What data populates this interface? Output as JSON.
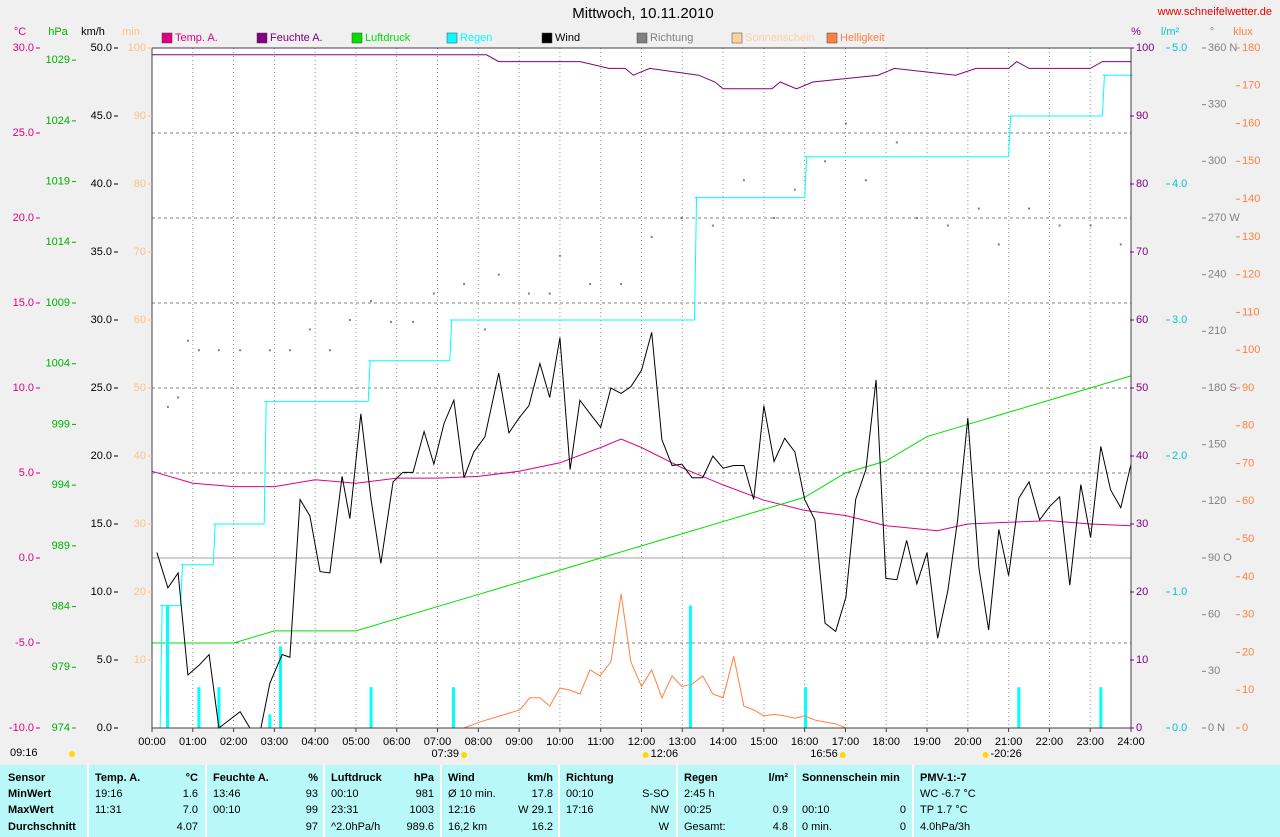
{
  "site": "www.schneifelwetter.de",
  "chart_data": {
    "type": "line",
    "title": "Mittwoch, 10.11.2010",
    "grid": true,
    "xlim": [
      0,
      24
    ],
    "xticks": [
      {
        "value": 0,
        "label": "00:00"
      },
      {
        "value": 1,
        "label": "01:00"
      },
      {
        "value": 2,
        "label": "02:00"
      },
      {
        "value": 3,
        "label": "03:00"
      },
      {
        "value": 4,
        "label": "04:00"
      },
      {
        "value": 5,
        "label": "05:00"
      },
      {
        "value": 6,
        "label": "06:00"
      },
      {
        "value": 7,
        "label": "07:00"
      },
      {
        "value": 8,
        "label": "08:00"
      },
      {
        "value": 9,
        "label": "09:00"
      },
      {
        "value": 10,
        "label": "10:00"
      },
      {
        "value": 11,
        "label": "11:00"
      },
      {
        "value": 12,
        "label": "12:00"
      },
      {
        "value": 13,
        "label": "13:00"
      },
      {
        "value": 14,
        "label": "14:00"
      },
      {
        "value": 15,
        "label": "15:00"
      },
      {
        "value": 16,
        "label": "16:00"
      },
      {
        "value": 17,
        "label": "17:00"
      },
      {
        "value": 18,
        "label": "18:00"
      },
      {
        "value": 19,
        "label": "19:00"
      },
      {
        "value": 20,
        "label": "20:00"
      },
      {
        "value": 21,
        "label": "21:00"
      },
      {
        "value": 22,
        "label": "22:00"
      },
      {
        "value": 23,
        "label": "23:00"
      },
      {
        "value": 24,
        "label": "24:00"
      }
    ],
    "axes": {
      "temp": {
        "label": "°C",
        "side": "left",
        "color": "#e0007f",
        "ylim": [
          -10,
          30
        ],
        "yticks": [
          {
            "value": -10,
            "label": "-10.0"
          },
          {
            "value": -5,
            "label": "-5.0"
          },
          {
            "value": 0,
            "label": "0.0"
          },
          {
            "value": 5,
            "label": "5.0"
          },
          {
            "value": 10,
            "label": "10.0"
          },
          {
            "value": 15,
            "label": "15.0"
          },
          {
            "value": 20,
            "label": "20.0"
          },
          {
            "value": 25,
            "label": "25.0"
          },
          {
            "value": 30,
            "label": "30.0"
          }
        ]
      },
      "hpa": {
        "label": "hPa",
        "side": "left",
        "color": "#00b000",
        "ylim": [
          974,
          1030
        ],
        "yticks": [
          974,
          979,
          984,
          989,
          994,
          999,
          1004,
          1009,
          1014,
          1019,
          1024,
          1029
        ]
      },
      "kmh": {
        "label": "km/h",
        "side": "left",
        "color": "#000000",
        "ylim": [
          0,
          50
        ],
        "yticks": [
          {
            "value": 0,
            "label": "0.0"
          },
          {
            "value": 5,
            "label": "5.0"
          },
          {
            "value": 10,
            "label": "10.0"
          },
          {
            "value": 15,
            "label": "15.0"
          },
          {
            "value": 20,
            "label": "20.0"
          },
          {
            "value": 25,
            "label": "25.0"
          },
          {
            "value": 30,
            "label": "30.0"
          },
          {
            "value": 35,
            "label": "35.0"
          },
          {
            "value": 40,
            "label": "40.0"
          },
          {
            "value": 45,
            "label": "45.0"
          },
          {
            "value": 50,
            "label": "50.0"
          }
        ]
      },
      "min": {
        "label": "min",
        "side": "left",
        "color": "#ffc080",
        "ylim": [
          0,
          100
        ],
        "yticks": [
          10,
          20,
          30,
          40,
          50,
          60,
          70,
          80,
          90,
          100
        ]
      },
      "pct": {
        "label": "%",
        "side": "right",
        "color": "#800080",
        "ylim": [
          0,
          100
        ],
        "yticks": [
          0,
          10,
          20,
          30,
          40,
          50,
          60,
          70,
          80,
          90,
          100
        ]
      },
      "rain": {
        "label": "l/m²",
        "side": "right",
        "color": "#00c8c8",
        "ylim": [
          0,
          5
        ],
        "yticks": [
          {
            "value": 0,
            "label": "0.0"
          },
          {
            "value": 1,
            "label": "1.0"
          },
          {
            "value": 2,
            "label": "2.0"
          },
          {
            "value": 3,
            "label": "3.0"
          },
          {
            "value": 4,
            "label": "4.0"
          },
          {
            "value": 5,
            "label": "5.0"
          }
        ]
      },
      "dir": {
        "label": "°",
        "side": "right",
        "color": "#808080",
        "ylim": [
          0,
          360
        ],
        "yticks": [
          {
            "value": 0,
            "label": "0 N"
          },
          30,
          60,
          {
            "value": 90,
            "label": "90 O"
          },
          120,
          150,
          {
            "value": 180,
            "label": "180 S"
          },
          210,
          240,
          {
            "value": 270,
            "label": "270 W"
          },
          300,
          330,
          {
            "value": 360,
            "label": "360 N"
          }
        ]
      },
      "klux": {
        "label": "klux",
        "side": "right",
        "color": "#ff8040",
        "ylim": [
          0,
          180
        ],
        "yticks": [
          0,
          10,
          20,
          30,
          40,
          50,
          60,
          70,
          80,
          90,
          100,
          110,
          120,
          130,
          140,
          150,
          160,
          170,
          180
        ]
      }
    },
    "series": [
      {
        "name": "Temp. A.",
        "color": "#e0007f",
        "axis": "temp",
        "style": "line",
        "x": [
          0,
          1,
          2,
          3,
          4,
          5,
          6,
          7,
          8,
          9,
          10,
          11,
          11.5,
          12,
          13,
          14,
          15,
          16,
          17,
          18,
          19.25,
          20,
          21,
          22,
          23,
          24
        ],
        "values": [
          5.1,
          4.4,
          4.2,
          4.2,
          4.6,
          4.4,
          4.7,
          4.7,
          4.8,
          5.1,
          5.6,
          6.5,
          7.0,
          6.5,
          5.3,
          4.3,
          3.4,
          2.8,
          2.5,
          1.9,
          1.6,
          2.0,
          2.1,
          2.2,
          2.0,
          1.9
        ]
      },
      {
        "name": "Feuchte A.",
        "color": "#800080",
        "axis": "pct",
        "style": "line",
        "x": [
          0,
          8.2,
          8.5,
          10.5,
          11.2,
          11.6,
          11.8,
          12.2,
          13.4,
          13.8,
          14.0,
          15.2,
          15.4,
          15.8,
          16.2,
          17.8,
          18.2,
          19.7,
          20.2,
          21.0,
          21.2,
          21.5,
          23.0,
          23.3,
          24
        ],
        "values": [
          99,
          99,
          98,
          98,
          97,
          97,
          96,
          97,
          96,
          95,
          94,
          94,
          95,
          94,
          95,
          96,
          97,
          96,
          97,
          97,
          98,
          97,
          97,
          98,
          98
        ]
      },
      {
        "name": "Luftdruck",
        "color": "#00e000",
        "axis": "hpa",
        "style": "line",
        "x": [
          0,
          1,
          2,
          3,
          4,
          5,
          6,
          7,
          8,
          9,
          10,
          11,
          12,
          13,
          14,
          15,
          16,
          17,
          18,
          19,
          20,
          21,
          22,
          23,
          24
        ],
        "values": [
          981,
          981,
          981,
          982,
          982,
          982,
          983,
          984,
          985,
          986,
          987,
          988,
          989,
          990,
          991,
          992,
          993,
          995,
          996,
          998,
          999,
          1000,
          1001,
          1002,
          1003
        ]
      },
      {
        "name": "Regen",
        "color": "#00ffff",
        "axis": "rain",
        "style": "step",
        "x": [
          0,
          0.2,
          0.7,
          1.5,
          2.75,
          5.3,
          7.3,
          13.3,
          16.0,
          21.0,
          23.3,
          24
        ],
        "values": [
          0,
          0.9,
          1.2,
          1.5,
          2.4,
          2.7,
          3.0,
          3.9,
          4.2,
          4.5,
          4.8,
          4.8
        ],
        "bars": {
          "x": [
            0.38,
            1.15,
            1.64,
            2.89,
            3.15,
            5.37,
            7.39,
            13.2,
            16.02,
            21.25,
            23.26
          ],
          "values": [
            0.9,
            0.3,
            0.3,
            0.1,
            0.6,
            0.3,
            0.3,
            0.9,
            0.3,
            0.3,
            0.3
          ]
        }
      },
      {
        "name": "Wind",
        "color": "#000000",
        "axis": "kmh",
        "style": "line",
        "x": [
          0.12,
          0.39,
          0.64,
          0.88,
          1.15,
          1.4,
          1.64,
          2.16,
          2.4,
          2.67,
          2.89,
          3.19,
          3.38,
          3.63,
          3.87,
          4.12,
          4.36,
          4.66,
          4.85,
          5.12,
          5.37,
          5.61,
          5.91,
          6.15,
          6.4,
          6.67,
          6.91,
          7.16,
          7.4,
          7.65,
          7.89,
          8.16,
          8.5,
          8.75,
          9.0,
          9.24,
          9.51,
          9.75,
          10.0,
          10.25,
          10.49,
          10.74,
          11.0,
          11.25,
          11.5,
          11.74,
          12.0,
          12.25,
          12.5,
          12.75,
          12.99,
          13.24,
          13.5,
          13.75,
          14.0,
          14.26,
          14.51,
          14.75,
          15.0,
          15.25,
          15.51,
          15.76,
          16.0,
          16.25,
          16.5,
          16.76,
          17.01,
          17.25,
          17.5,
          17.75,
          17.99,
          18.26,
          18.5,
          18.75,
          19.0,
          19.26,
          19.51,
          19.75,
          20.0,
          20.27,
          20.51,
          20.76,
          21.0,
          21.25,
          21.5,
          21.76,
          22.01,
          22.25,
          22.5,
          22.77,
          23.01,
          23.26,
          23.5,
          23.75,
          24.0
        ],
        "values": [
          12.9,
          10.3,
          11.4,
          3.9,
          4.6,
          5.4,
          0,
          1.2,
          0,
          0,
          3.3,
          5.4,
          5.2,
          16.8,
          15.6,
          11.5,
          11.4,
          18.5,
          15.4,
          23.1,
          16.8,
          12.1,
          18.1,
          18.8,
          18.8,
          21.8,
          19.4,
          22.4,
          24.1,
          18.4,
          20.3,
          21.4,
          26.1,
          21.7,
          22.8,
          23.7,
          26.8,
          24.3,
          28.7,
          19.0,
          24.1,
          23.1,
          22.1,
          25.0,
          24.6,
          25.1,
          26.3,
          29.1,
          21.2,
          19.3,
          19.4,
          18.4,
          18.4,
          20.0,
          19.1,
          19.3,
          19.3,
          16.8,
          23.7,
          19.6,
          21.3,
          20.3,
          16.8,
          15.3,
          7.7,
          7.1,
          9.6,
          16.8,
          19.0,
          25.6,
          11.0,
          10.9,
          13.8,
          10.6,
          12.9,
          6.6,
          10.1,
          15.3,
          22.8,
          11.8,
          7.2,
          14.6,
          11.2,
          16.9,
          18.1,
          15.3,
          16.3,
          17.0,
          10.5,
          17.9,
          14.0,
          20.7,
          17.5,
          16.2,
          19.4
        ]
      },
      {
        "name": "Richtung",
        "color": "#808080",
        "axis": "dir",
        "style": "dots",
        "x": [
          0.39,
          0.64,
          0.88,
          1.15,
          1.64,
          2.16,
          2.89,
          3.38,
          3.87,
          4.36,
          4.85,
          5.37,
          5.86,
          6.4,
          6.91,
          7.65,
          8.16,
          8.5,
          9.24,
          9.75,
          10.0,
          10.74,
          11.5,
          12.25,
          12.99,
          13.75,
          14.51,
          15.25,
          15.76,
          16.5,
          17.01,
          17.5,
          18.26,
          18.75,
          19.51,
          20.27,
          20.76,
          21.5,
          22.25,
          23.01,
          23.75
        ],
        "values": [
          170,
          175,
          205,
          200,
          200,
          200,
          200,
          200,
          211,
          200,
          216,
          226,
          215,
          215,
          230,
          235,
          211,
          240,
          230,
          230,
          250,
          235,
          235,
          260,
          270,
          266,
          290,
          270,
          285,
          300,
          320,
          290,
          310,
          270,
          266,
          275,
          256,
          275,
          266,
          266,
          256
        ]
      },
      {
        "name": "Sonnenschein",
        "color": "#ffd0a0",
        "axis": "min",
        "style": "line",
        "x": [
          0,
          24
        ],
        "values": [
          0,
          0
        ]
      },
      {
        "name": "Helligkeit",
        "color": "#ff8040",
        "axis": "klux",
        "style": "line",
        "x": [
          7.65,
          8.04,
          8.53,
          9.02,
          9.26,
          9.51,
          9.75,
          10.0,
          10.25,
          10.49,
          10.74,
          10.98,
          11.25,
          11.5,
          11.74,
          12.0,
          12.25,
          12.5,
          12.75,
          12.99,
          13.24,
          13.5,
          13.75,
          14.0,
          14.26,
          14.51,
          14.75,
          15.0,
          15.25,
          15.51,
          15.76,
          16.0,
          16.25,
          16.5,
          16.76,
          17.01
        ],
        "values": [
          0,
          1.6,
          3.2,
          4.8,
          8,
          8,
          5.8,
          10.6,
          10,
          9,
          15.4,
          13.8,
          17.5,
          35.5,
          17.5,
          11,
          15.4,
          8,
          13.8,
          11,
          11.6,
          13.8,
          9,
          8,
          19,
          5.8,
          4.8,
          3.2,
          3.6,
          3.2,
          2.6,
          3.2,
          2.1,
          1.6,
          1.1,
          0
        ]
      }
    ],
    "annotations": [
      {
        "label": "07:39"
      },
      {
        "label": "12:06"
      },
      {
        "label": "16:56"
      },
      {
        "label": "-20:26"
      }
    ],
    "corner_note": "09:16"
  },
  "table": {
    "header": [
      "Sensor",
      "Temp. A.",
      "°C",
      "Feuchte A.",
      "%",
      "Luftdruck",
      "hPa",
      "Wind",
      "km/h",
      "Richtung",
      null,
      "Regen",
      "l/m²",
      "Sonnenschein min",
      null,
      "PMV-1:-7"
    ],
    "rows": [
      [
        "MinWert",
        "19:16",
        "1.6",
        "13:46",
        "93",
        "00:10",
        "981",
        "Ø 10 min.",
        "17.8",
        "00:10",
        "S-SO",
        "2:45 h",
        null,
        null,
        null,
        "WC -6.7 °C"
      ],
      [
        "MaxWert",
        "11:31",
        "7.0",
        "00:10",
        "99",
        "23:31",
        "1003",
        "12:16",
        "W 29.1",
        "17:16",
        "NW",
        "00:25",
        "0.9",
        "00:10",
        "0",
        "TP 1.7 °C"
      ],
      [
        "Durchschnitt",
        null,
        "4.07",
        null,
        "97",
        "^2.0hPa/h",
        "989.6",
        "16,2 km",
        "16.2",
        null,
        "W",
        "Gesamt:",
        "4.8",
        "0 min.",
        "0",
        "4.0hPa/3h"
      ]
    ]
  }
}
